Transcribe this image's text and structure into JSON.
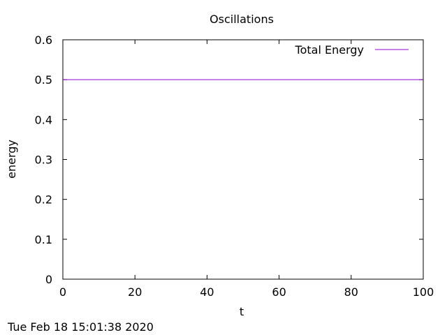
{
  "chart_data": {
    "type": "line",
    "title": "Oscillations",
    "xlabel": "t",
    "ylabel": "energy",
    "xlim": [
      0,
      100
    ],
    "ylim": [
      0,
      0.6
    ],
    "xticks": [
      0,
      20,
      40,
      60,
      80,
      100
    ],
    "yticks": [
      0,
      0.1,
      0.2,
      0.3,
      0.4,
      0.5,
      0.6
    ],
    "xtick_labels": [
      "0",
      "20",
      "40",
      "60",
      "80",
      "100"
    ],
    "ytick_labels": [
      "0",
      "0.1",
      "0.2",
      "0.3",
      "0.4",
      "0.5",
      "0.6"
    ],
    "grid": false,
    "legend_position": "top-right",
    "series": [
      {
        "name": "Total Energy",
        "color": "#9400d3",
        "x": [
          0,
          100
        ],
        "y": [
          0.5,
          0.5
        ]
      }
    ]
  },
  "footer": {
    "timestamp": "Tue Feb 18 15:01:38 2020"
  }
}
